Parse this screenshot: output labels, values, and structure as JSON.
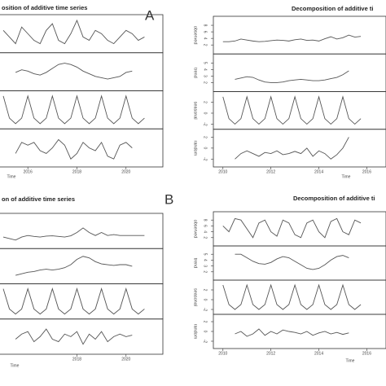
{
  "labels": [
    "A",
    "B"
  ],
  "chart_data": [
    {
      "type": "line",
      "title": "osition of additive time series",
      "xlabel": "Time",
      "x": [
        2015,
        2015.25,
        2015.5,
        2015.75,
        2016,
        2016.25,
        2016.5,
        2016.75,
        2017,
        2017.25,
        2017.5,
        2017.75,
        2018,
        2018.25,
        2018.5,
        2018.75,
        2019,
        2019.25,
        2019.5,
        2019.75,
        2020,
        2020.25,
        2020.5,
        2020.75
      ],
      "xlim": [
        2014.8,
        2021.5
      ],
      "xticks": [
        2016,
        2018,
        2020
      ],
      "panels": [
        {
          "ylim": [
            0,
            10
          ],
          "values": [
            6,
            4,
            2,
            7,
            5,
            3,
            2,
            6,
            8,
            3,
            2,
            5,
            9,
            4,
            3,
            6,
            5,
            3,
            2,
            4,
            6,
            5,
            3,
            4
          ]
        },
        {
          "ylim": [
            3,
            5.5
          ],
          "values": [
            null,
            null,
            4.2,
            4.4,
            4.3,
            4.1,
            4,
            4.2,
            4.5,
            4.8,
            4.9,
            4.8,
            4.6,
            4.3,
            4.1,
            3.9,
            3.8,
            3.7,
            3.8,
            3.9,
            4.2,
            4.3,
            null,
            null
          ]
        },
        {
          "ylim": [
            -2.5,
            3.5
          ],
          "values": [
            3,
            -1,
            -2,
            -1,
            3,
            -1,
            -2,
            -1,
            3,
            -1,
            -2,
            -1,
            3,
            -1,
            -2,
            -1,
            3,
            -1,
            -2,
            -1,
            3,
            -1,
            -2,
            -1
          ]
        },
        {
          "ylim": [
            -3,
            3
          ],
          "values": [
            null,
            null,
            -1,
            1,
            0.5,
            1,
            -0.5,
            -1,
            0,
            1.5,
            0.5,
            -2,
            -1,
            1,
            0,
            -0.5,
            1,
            -1.5,
            -2,
            0.5,
            1,
            0,
            null,
            null
          ]
        }
      ]
    },
    {
      "type": "line",
      "title": "Decomposition of additive ti",
      "xlabel": "Time",
      "x": [
        2010,
        2010.25,
        2010.5,
        2010.75,
        2011,
        2011.25,
        2011.5,
        2011.75,
        2012,
        2012.25,
        2012.5,
        2012.75,
        2013,
        2013.25,
        2013.5,
        2013.75,
        2014,
        2014.25,
        2014.5,
        2014.75,
        2015,
        2015.25,
        2015.5,
        2015.75
      ],
      "xlim": [
        2009.6,
        2016.8
      ],
      "xticks": [
        2010,
        2012,
        2014,
        2016
      ],
      "panels": [
        {
          "name": "observed",
          "ylim": [
            0,
            10
          ],
          "yticks": [
            2,
            4,
            6,
            8
          ],
          "values": [
            3,
            3,
            3.2,
            3.8,
            3.5,
            3.2,
            3,
            3.1,
            3.3,
            3.5,
            3.4,
            3.2,
            3.6,
            3.8,
            3.4,
            3.5,
            3.2,
            3.9,
            4.5,
            3.8,
            4.2,
            5,
            4.4,
            4.6
          ]
        },
        {
          "name": "trend",
          "ylim": [
            1,
            6
          ],
          "yticks": [
            2,
            3,
            4,
            5
          ],
          "values": [
            null,
            null,
            2.5,
            2.7,
            2.9,
            2.8,
            2.4,
            2.1,
            2,
            2,
            2.1,
            2.3,
            2.4,
            2.5,
            2.4,
            2.3,
            2.3,
            2.4,
            2.6,
            2.8,
            3.2,
            3.8,
            null,
            null
          ]
        },
        {
          "name": "seasonal",
          "ylim": [
            -2.5,
            3.5
          ],
          "yticks": [
            -2,
            0,
            2
          ],
          "values": [
            3,
            -1,
            -2,
            -1,
            3,
            -1,
            -2,
            -1,
            3,
            -1,
            -2,
            -1,
            3,
            -1,
            -2,
            -1,
            3,
            -1,
            -2,
            -1,
            3,
            -1,
            -2,
            -1
          ]
        },
        {
          "name": "random",
          "ylim": [
            -3,
            3
          ],
          "yticks": [
            -2,
            0,
            2
          ],
          "values": [
            null,
            null,
            -2,
            -1,
            -0.5,
            -1,
            -1.5,
            -0.8,
            -1,
            -0.5,
            -1.2,
            -1,
            -0.6,
            -1,
            0,
            -1.5,
            -0.5,
            -1,
            -2,
            -1.2,
            0,
            2,
            null,
            null
          ]
        }
      ]
    },
    {
      "type": "line",
      "title": "on of additive time series",
      "xlabel": "Time",
      "x": [
        2015,
        2015.25,
        2015.5,
        2015.75,
        2016,
        2016.25,
        2016.5,
        2016.75,
        2017,
        2017.25,
        2017.5,
        2017.75,
        2018,
        2018.25,
        2018.5,
        2018.75,
        2019,
        2019.25,
        2019.5,
        2019.75,
        2020,
        2020.25,
        2020.5,
        2020.75
      ],
      "xlim": [
        2014.8,
        2021.5
      ],
      "xticks": [
        2018,
        2020
      ],
      "panels": [
        {
          "ylim": [
            0,
            10
          ],
          "values": [
            3,
            2.5,
            2,
            3,
            3.5,
            3.2,
            3,
            3.3,
            3.4,
            3.2,
            3,
            3.4,
            4.5,
            6,
            4.5,
            3.5,
            4.5,
            3.5,
            3.8,
            3.5,
            3.5,
            3.5,
            3.5,
            3.5
          ]
        },
        {
          "ylim": [
            2,
            6
          ],
          "values": [
            null,
            null,
            2.8,
            3,
            3.2,
            3.3,
            3.5,
            3.6,
            3.5,
            3.6,
            3.8,
            4.2,
            4.9,
            5.3,
            5.1,
            4.6,
            4.3,
            4.2,
            4.1,
            4.2,
            4.2,
            4,
            null,
            null
          ]
        },
        {
          "ylim": [
            -2.5,
            3.5
          ],
          "values": [
            3,
            -1,
            -2,
            -1,
            3,
            -1,
            -2,
            -1,
            3,
            -1,
            -2,
            -1,
            3,
            -1,
            -2,
            -1,
            3,
            -1,
            -2,
            -1,
            3,
            -1,
            -2,
            -1
          ]
        },
        {
          "ylim": [
            -3,
            3
          ],
          "values": [
            null,
            null,
            -0.5,
            0.5,
            1,
            -1,
            0,
            1.5,
            -0.5,
            -1,
            0.5,
            0,
            1,
            -1.5,
            0.5,
            -0.5,
            1,
            -1,
            0,
            0.5,
            0,
            0.3,
            null,
            null
          ]
        }
      ]
    },
    {
      "type": "line",
      "title": "Decomposition of additive ti",
      "xlabel": "Time",
      "x": [
        2010,
        2010.25,
        2010.5,
        2010.75,
        2011,
        2011.25,
        2011.5,
        2011.75,
        2012,
        2012.25,
        2012.5,
        2012.75,
        2013,
        2013.25,
        2013.5,
        2013.75,
        2014,
        2014.25,
        2014.5,
        2014.75,
        2015,
        2015.25,
        2015.5,
        2015.75
      ],
      "xlim": [
        2009.6,
        2016.8
      ],
      "xticks": [
        2010,
        2012,
        2014,
        2016
      ],
      "panels": [
        {
          "name": "observed",
          "ylim": [
            0,
            10
          ],
          "yticks": [
            2,
            4,
            6,
            8
          ],
          "values": [
            6,
            4,
            8.5,
            8,
            5,
            2,
            7,
            8,
            4,
            2.5,
            8,
            7,
            3,
            2,
            7,
            8,
            4,
            2,
            7.5,
            8.5,
            4,
            3,
            8,
            7
          ]
        },
        {
          "name": "trend",
          "ylim": [
            1,
            6
          ],
          "yticks": [
            2,
            3,
            4,
            5
          ],
          "values": [
            null,
            null,
            5,
            5,
            4.4,
            3.8,
            3.4,
            3.3,
            3.6,
            4.2,
            4.6,
            4.4,
            3.8,
            3.2,
            2.6,
            2.4,
            2.6,
            3.2,
            4,
            4.6,
            4.8,
            4.4,
            null,
            null
          ]
        },
        {
          "name": "seasonal",
          "ylim": [
            -2.5,
            3.5
          ],
          "yticks": [
            -2,
            0,
            2
          ],
          "values": [
            3,
            -1,
            -2,
            -1,
            3,
            -1,
            -2,
            -1,
            3,
            -1,
            -2,
            -1,
            3,
            -1,
            -2,
            -1,
            3,
            -1,
            -2,
            -1,
            3,
            -1,
            -2,
            -1
          ]
        },
        {
          "name": "random",
          "ylim": [
            -3,
            3
          ],
          "yticks": [
            -2,
            0,
            2
          ],
          "values": [
            null,
            null,
            -0.5,
            0,
            -1,
            -0.5,
            0.5,
            -0.8,
            0,
            -0.5,
            0.3,
            0,
            -0.2,
            -0.5,
            0,
            -0.8,
            -0.3,
            0,
            -0.5,
            -0.2,
            -0.6,
            -0.3,
            null,
            null
          ]
        }
      ]
    }
  ]
}
